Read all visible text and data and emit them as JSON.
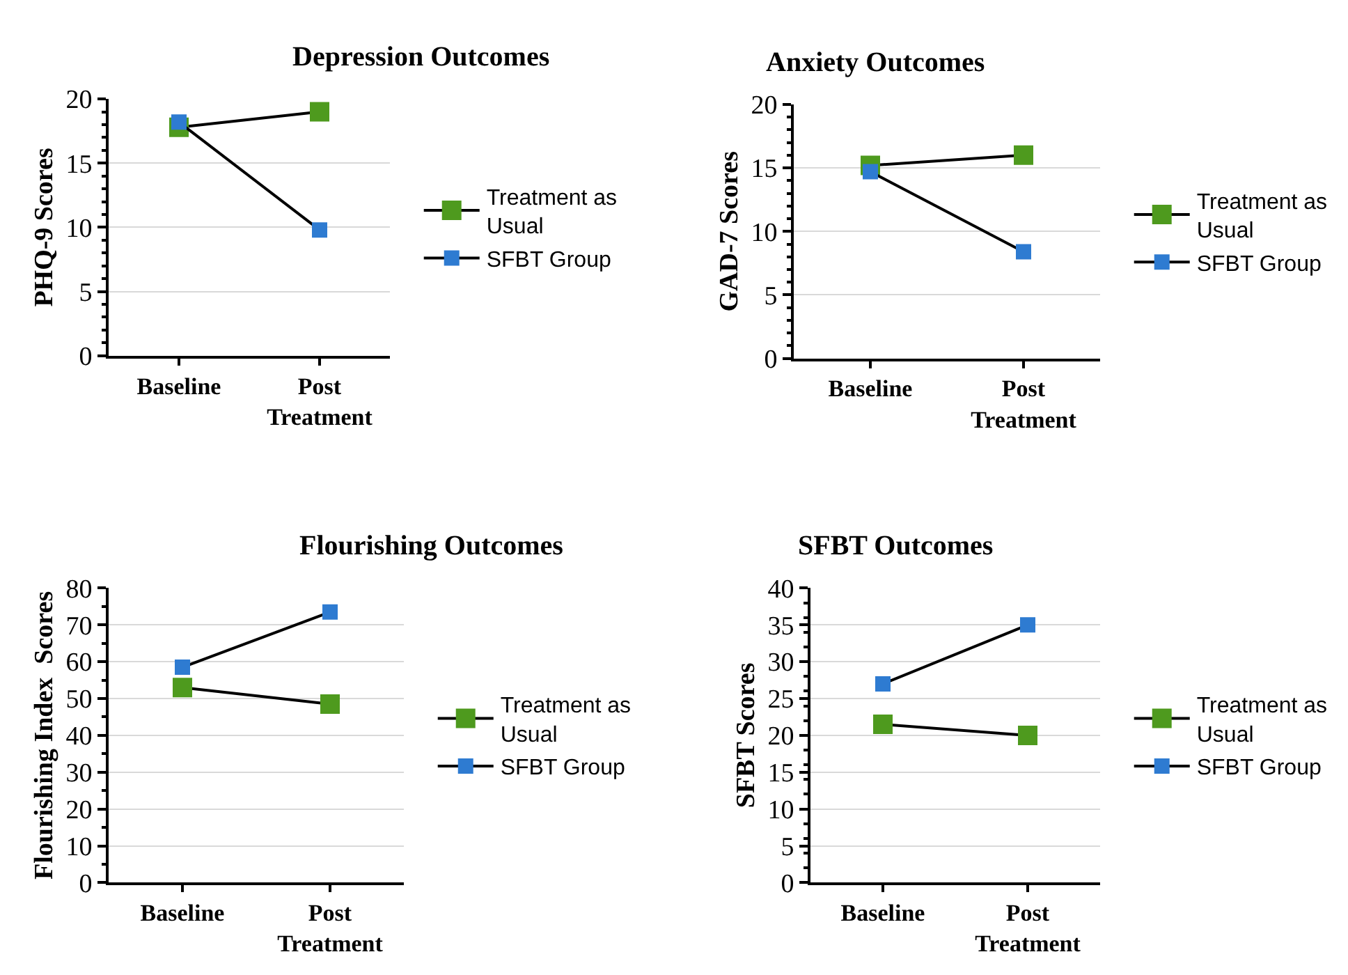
{
  "chart_data": [
    {
      "type": "line",
      "title": "Depression Outcomes",
      "ylabel": "PHQ-9 Scores",
      "categories": [
        "Baseline",
        "Post Treatment"
      ],
      "series": [
        {
          "name": "Treatment as Usual",
          "color": "#4e9a1e",
          "values": [
            17.8,
            19.0
          ]
        },
        {
          "name": "SFBT Group",
          "color": "#2e7bd1",
          "values": [
            18.2,
            9.8
          ]
        }
      ],
      "ylim": [
        0,
        20
      ],
      "yticks": [
        0,
        5,
        10,
        15,
        20
      ],
      "grid": "y",
      "legend": "right",
      "marker": "square",
      "line_style": "solid"
    },
    {
      "type": "line",
      "title": "Anxiety Outcomes",
      "ylabel": "GAD-7 Scores",
      "categories": [
        "Baseline",
        "Post Treatment"
      ],
      "series": [
        {
          "name": "Treatment as Usual",
          "color": "#4e9a1e",
          "values": [
            15.2,
            16.0
          ]
        },
        {
          "name": "SFBT Group",
          "color": "#2e7bd1",
          "values": [
            14.7,
            8.4
          ]
        }
      ],
      "ylim": [
        0,
        20
      ],
      "yticks": [
        0,
        5,
        10,
        15,
        20
      ],
      "grid": "y",
      "legend": "right",
      "marker": "square",
      "line_style": "solid"
    },
    {
      "type": "line",
      "title": "Flourishing Outcomes",
      "ylabel": "Flourishing Index  Scores",
      "categories": [
        "Baseline",
        "Post Treatment"
      ],
      "series": [
        {
          "name": "Treatment as Usual",
          "color": "#4e9a1e",
          "values": [
            53,
            48.5
          ]
        },
        {
          "name": "SFBT Group",
          "color": "#2e7bd1",
          "values": [
            58.5,
            73.5
          ]
        }
      ],
      "ylim": [
        0,
        80
      ],
      "yticks": [
        0,
        10,
        20,
        30,
        40,
        50,
        60,
        70,
        80
      ],
      "grid": "y",
      "legend": "right",
      "marker": "square",
      "line_style": "solid"
    },
    {
      "type": "line",
      "title": "SFBT Outcomes",
      "ylabel": "SFBT Scores",
      "categories": [
        "Baseline",
        "Post Treatment"
      ],
      "series": [
        {
          "name": "Treatment as Usual",
          "color": "#4e9a1e",
          "values": [
            21.5,
            20
          ]
        },
        {
          "name": "SFBT Group",
          "color": "#2e7bd1",
          "values": [
            27,
            35
          ]
        }
      ],
      "ylim": [
        0,
        40
      ],
      "yticks": [
        0,
        5,
        10,
        15,
        20,
        25,
        30,
        35,
        40
      ],
      "grid": "y",
      "legend": "right",
      "marker": "square",
      "line_style": "solid"
    }
  ]
}
